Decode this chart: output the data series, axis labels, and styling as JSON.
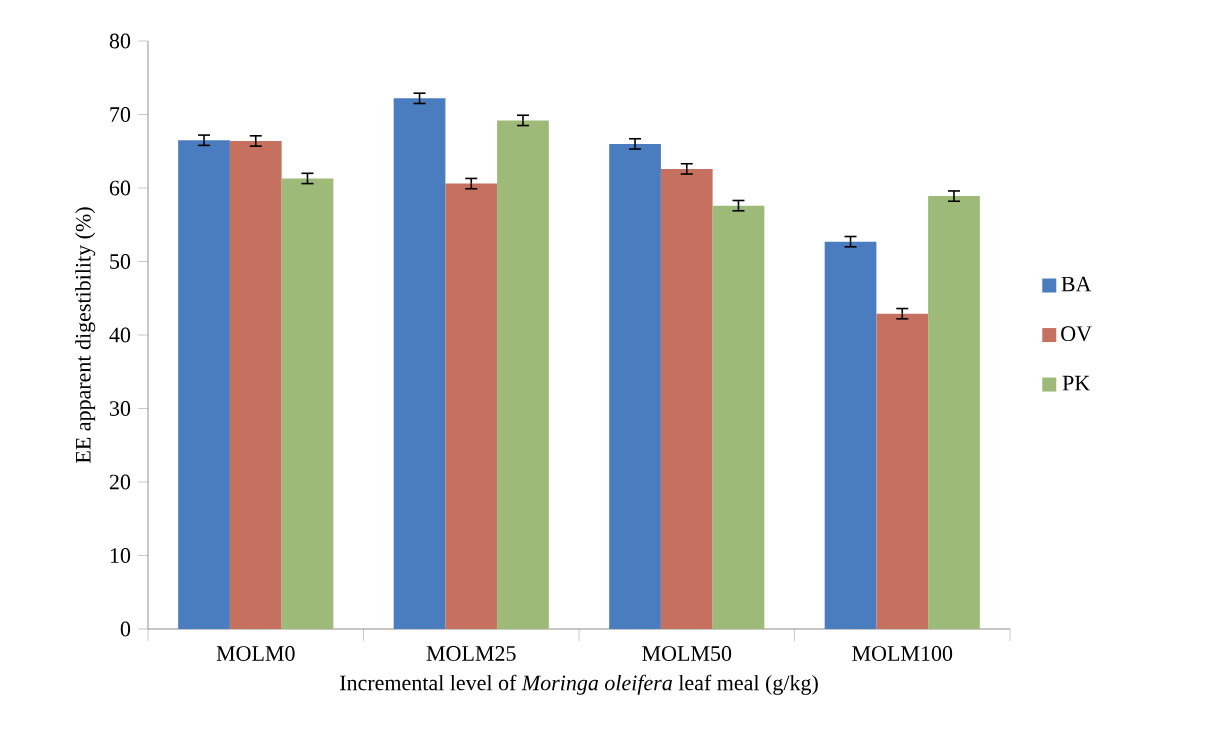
{
  "chart_data": {
    "type": "bar",
    "xlabel": "Incremental level of *Moringa oleifera* leaf meal (g/kg)",
    "ylabel": "EE apparent digestibility (%)",
    "categories": [
      "MOLM0",
      "MOLM25",
      "MOLM50",
      "MOLM100"
    ],
    "series": [
      {
        "name": "BA",
        "color": "#4a7cc0",
        "values": [
          66.5,
          72.2,
          66.0,
          52.7
        ],
        "errors": [
          0.7,
          0.7,
          0.7,
          0.7
        ]
      },
      {
        "name": "OV",
        "color": "#c6705f",
        "values": [
          66.4,
          60.6,
          62.6,
          42.9
        ],
        "errors": [
          0.7,
          0.7,
          0.7,
          0.7
        ]
      },
      {
        "name": "PK",
        "color": "#9dba79",
        "values": [
          61.3,
          69.2,
          57.6,
          58.9
        ],
        "errors": [
          0.7,
          0.7,
          0.7,
          0.7
        ]
      }
    ],
    "ylim": [
      0,
      80
    ],
    "yticks": [
      0,
      10,
      20,
      30,
      40,
      50,
      60,
      70,
      80
    ],
    "legend": "right",
    "grid": false
  }
}
